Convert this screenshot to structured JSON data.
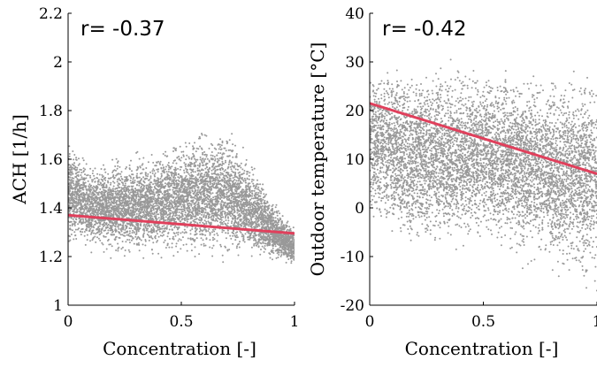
{
  "chart_data": [
    {
      "type": "scatter",
      "annotation": "r= -0.37",
      "xlabel": "Concentration [-]",
      "ylabel": "ACH [1/h]",
      "xlim": [
        0,
        1
      ],
      "ylim": [
        1,
        2.2
      ],
      "xticks": [
        0,
        0.5,
        1
      ],
      "xtick_labels": [
        "0",
        "0.5",
        "1"
      ],
      "yticks": [
        1,
        1.2,
        1.4,
        1.6,
        1.8,
        2,
        2.2
      ],
      "ytick_labels": [
        "1",
        "1.2",
        "1.4",
        "1.6",
        "1.8",
        "2",
        "2.2"
      ],
      "grid": false,
      "point_color": "#999999",
      "line_color": "#e0405c",
      "fit_line": {
        "x": [
          0,
          1
        ],
        "y": [
          1.37,
          1.295
        ]
      },
      "cloud_envelope": {
        "x": [
          0,
          0.1,
          0.2,
          0.3,
          0.4,
          0.5,
          0.6,
          0.7,
          0.8,
          0.9,
          1.0
        ],
        "lower": [
          1.22,
          1.2,
          1.19,
          1.18,
          1.18,
          1.18,
          1.18,
          1.18,
          1.18,
          1.17,
          1.15
        ],
        "upper": [
          1.72,
          1.6,
          1.62,
          1.64,
          1.66,
          1.7,
          1.74,
          1.76,
          1.62,
          1.45,
          1.33
        ]
      }
    },
    {
      "type": "scatter",
      "annotation": "r= -0.42",
      "xlabel": "Concentration [-]",
      "ylabel": "Outdoor temperature [°C]",
      "xlim": [
        0,
        1
      ],
      "ylim": [
        -20,
        40
      ],
      "xticks": [
        0,
        0.5,
        1
      ],
      "xtick_labels": [
        "0",
        "0.5",
        "1"
      ],
      "yticks": [
        -20,
        -10,
        0,
        10,
        20,
        30,
        40
      ],
      "ytick_labels": [
        "-20",
        "-10",
        "0",
        "10",
        "20",
        "30",
        "40"
      ],
      "grid": false,
      "point_color": "#999999",
      "line_color": "#e0405c",
      "fit_line": {
        "x": [
          0,
          1
        ],
        "y": [
          21.5,
          7
        ]
      },
      "cloud_envelope": {
        "x": [
          0,
          0.1,
          0.2,
          0.3,
          0.4,
          0.5,
          0.6,
          0.7,
          0.8,
          0.9,
          1.0
        ],
        "lower": [
          -3,
          -8,
          -10,
          -10,
          -10,
          -10,
          -11,
          -13,
          -16,
          -18,
          -18
        ],
        "upper": [
          31,
          31,
          31,
          31,
          31,
          31,
          31,
          30,
          30,
          30,
          30
        ]
      }
    }
  ]
}
